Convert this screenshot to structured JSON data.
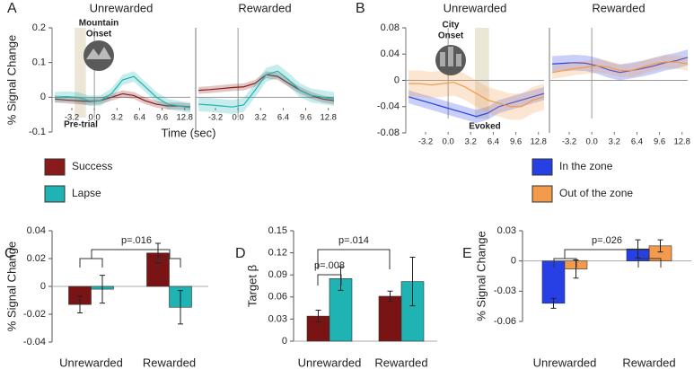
{
  "chart_data": [
    {
      "type": "line",
      "panel": "A",
      "xlabel": "Time (sec)",
      "ylabel": "% Signal Change",
      "x": [
        -5.6,
        -4,
        -2.4,
        -0.8,
        0.8,
        2.4,
        4,
        5.6,
        7.2,
        8.8,
        10.4,
        12,
        13.6
      ],
      "xlim": [
        -6,
        13.6
      ],
      "xticks": [
        -3.2,
        {
          "value": 0,
          "label": "0.0"
        },
        3.2,
        6.4,
        9.6,
        12.8
      ],
      "ylim": [
        -0.1,
        0.2
      ],
      "yticks": [
        -0.1,
        0,
        0.1,
        0.2
      ],
      "highlight_x": [
        -2.8,
        -1.2
      ],
      "annotations": [
        "Mountain",
        "Onset",
        "Pre-trial"
      ],
      "series": [
        {
          "name": "Success",
          "color": "#8b1a1a"
        },
        {
          "name": "Lapse",
          "color": "#1fb3b3"
        }
      ],
      "subplots": [
        {
          "title": "Unrewarded",
          "series": [
            {
              "values": [
                -0.005,
                -0.008,
                -0.01,
                -0.012,
                -0.01,
                0.0,
                0.01,
                0.005,
                -0.01,
                -0.02,
                -0.025,
                -0.025,
                -0.028
              ],
              "error": 0.01
            },
            {
              "values": [
                0.0,
                0.002,
                0.0,
                -0.01,
                -0.01,
                0.01,
                0.05,
                0.06,
                0.03,
                0.0,
                -0.02,
                -0.025,
                -0.03
              ],
              "error": 0.015
            }
          ]
        },
        {
          "title": "Rewarded",
          "series": [
            {
              "values": [
                0.02,
                0.022,
                0.025,
                0.028,
                0.03,
                0.04,
                0.065,
                0.06,
                0.04,
                0.02,
                0.005,
                -0.005,
                -0.01
              ],
              "error": 0.01
            },
            {
              "values": [
                -0.02,
                -0.022,
                -0.025,
                -0.028,
                -0.022,
                0.02,
                0.065,
                0.075,
                0.05,
                0.02,
                0.005,
                0.0,
                -0.005
              ],
              "error": 0.02
            }
          ]
        }
      ]
    },
    {
      "type": "line",
      "panel": "B",
      "x": [
        -5.6,
        -4,
        -2.4,
        -0.8,
        0.8,
        2.4,
        4,
        5.6,
        7.2,
        8.8,
        10.4,
        12,
        13.6
      ],
      "xlim": [
        -6,
        13.6
      ],
      "xticks": [
        -3.2,
        {
          "value": 0,
          "label": "0.0"
        },
        3.2,
        6.4,
        9.6,
        12.8
      ],
      "ylim": [
        -0.08,
        0.08
      ],
      "yticks": [
        -0.08,
        -0.04,
        0,
        0.04,
        0.08
      ],
      "highlight_x": [
        3.8,
        5.8
      ],
      "annotations": [
        "City",
        "Onset",
        "Evoked"
      ],
      "series": [
        {
          "name": "In the zone",
          "color": "#2640e6"
        },
        {
          "name": "Out of the zone",
          "color": "#f39a4c"
        }
      ],
      "subplots": [
        {
          "title": "Unrewarded",
          "series": [
            {
              "values": [
                -0.025,
                -0.03,
                -0.035,
                -0.04,
                -0.045,
                -0.05,
                -0.055,
                -0.05,
                -0.04,
                -0.035,
                -0.03,
                -0.025,
                -0.02
              ],
              "error": 0.01
            },
            {
              "values": [
                -0.005,
                -0.005,
                -0.007,
                -0.005,
                -0.003,
                -0.01,
                -0.02,
                -0.03,
                -0.035,
                -0.04,
                -0.04,
                -0.03,
                -0.025
              ],
              "error": 0.02
            }
          ]
        },
        {
          "title": "Rewarded",
          "series": [
            {
              "values": [
                0.025,
                0.026,
                0.027,
                0.026,
                0.022,
                0.016,
                0.012,
                0.015,
                0.018,
                0.022,
                0.027,
                0.03,
                0.035
              ],
              "error": 0.012
            },
            {
              "values": [
                0.012,
                0.015,
                0.018,
                0.02,
                0.022,
                0.02,
                0.015,
                0.015,
                0.02,
                0.025,
                0.028,
                0.028,
                0.025
              ],
              "error": 0.01
            }
          ]
        }
      ]
    },
    {
      "type": "bar",
      "panel": "C",
      "ylabel": "% Signal Change",
      "categories": [
        "Unrewarded",
        "Rewarded"
      ],
      "ylim": [
        -0.04,
        0.04
      ],
      "yticks": [
        -0.04,
        -0.02,
        0,
        0.02,
        0.04
      ],
      "annotations": [
        "p=.016"
      ],
      "series": [
        {
          "color": "#7a1414",
          "values": [
            -0.013,
            0.024
          ],
          "errors": [
            0.006,
            0.007
          ]
        },
        {
          "color": "#1fb3b3",
          "values": [
            -0.002,
            -0.015
          ],
          "errors": [
            0.01,
            0.012
          ]
        }
      ]
    },
    {
      "type": "bar",
      "panel": "D",
      "ylabel": "Target β",
      "categories": [
        "Unrewarded",
        "Rewarded"
      ],
      "ylim": [
        0,
        0.15
      ],
      "yticks": [
        0,
        0.03,
        0.06,
        0.09,
        0.12,
        0.15
      ],
      "annotations": [
        "p=.008",
        "p=.014"
      ],
      "series": [
        {
          "color": "#7a1414",
          "values": [
            0.034,
            0.061
          ],
          "errors": [
            0.008,
            0.007
          ]
        },
        {
          "color": "#1fb3b3",
          "values": [
            0.085,
            0.081
          ],
          "errors": [
            0.016,
            0.033
          ]
        }
      ]
    },
    {
      "type": "bar",
      "panel": "E",
      "ylabel": "% Signal Change",
      "categories": [
        "Unrewarded",
        "Rewarded"
      ],
      "ylim": [
        -0.06,
        0.03
      ],
      "yticks": [
        -0.06,
        -0.03,
        0,
        0.03
      ],
      "annotations": [
        "p=.026"
      ],
      "series": [
        {
          "color": "#2640e6",
          "values": [
            -0.042,
            0.012
          ],
          "errors": [
            0.005,
            0.009
          ]
        },
        {
          "color": "#f39a4c",
          "values": [
            -0.008,
            0.015
          ],
          "errors": [
            0.009,
            0.006
          ]
        }
      ]
    }
  ]
}
